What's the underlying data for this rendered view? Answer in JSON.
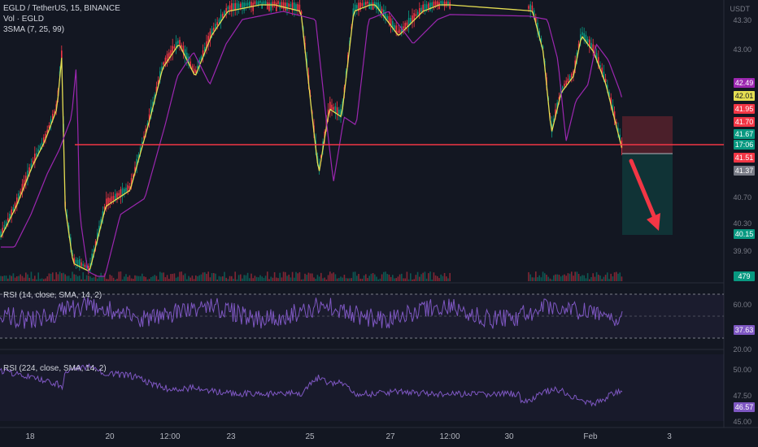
{
  "legend": {
    "symbol_line": "EGLD / TetherUS, 15, BINANCE",
    "volume_line": "Vol · EGLD",
    "sma_line": "3SMA (7, 25, 99)"
  },
  "rsi1_label": "RSI (14, close, SMA, 14, 2)",
  "rsi2_label": "RSI (224, close, SMA, 14, 2)",
  "currency": "USDT",
  "price_axis": [
    "43.30",
    "43.00",
    "40.70",
    "40.30",
    "39.90"
  ],
  "price_badges": [
    {
      "text": "42.49",
      "color": "#9c27b0"
    },
    {
      "text": "42.01",
      "color": "#e5de52",
      "fg": "#131722"
    },
    {
      "text": "41.95",
      "color": "#f23645"
    },
    {
      "text": "41.70",
      "color": "#f23645"
    },
    {
      "text": "41.67",
      "color": "#089981"
    },
    {
      "text": "17:06",
      "color": "#089981"
    },
    {
      "text": "41.51",
      "color": "#f23645"
    },
    {
      "text": "41.37",
      "color": "#787b86"
    },
    {
      "text": "40.15",
      "color": "#089981"
    }
  ],
  "volume_badge": "479",
  "rsi1_axis": [
    "60.00",
    "20.00"
  ],
  "rsi1_badge": "37.63",
  "rsi2_axis": [
    "50.00",
    "47.50",
    "45.00"
  ],
  "rsi2_badge": "46.57",
  "time_axis": [
    "18",
    "20",
    "12:00",
    "23",
    "25",
    "27",
    "12:00",
    "30",
    "Feb",
    "3"
  ],
  "colors": {
    "background": "#131722",
    "up": "#089981",
    "down": "#f23645",
    "sma_fast": "#e5de52",
    "sma_slow": "#9c27b0",
    "rsi": "#7e57c2",
    "horizontal_line": "#f23645",
    "arrow": "#f23645"
  },
  "icons": [
    "down-arrow-drawing"
  ]
}
